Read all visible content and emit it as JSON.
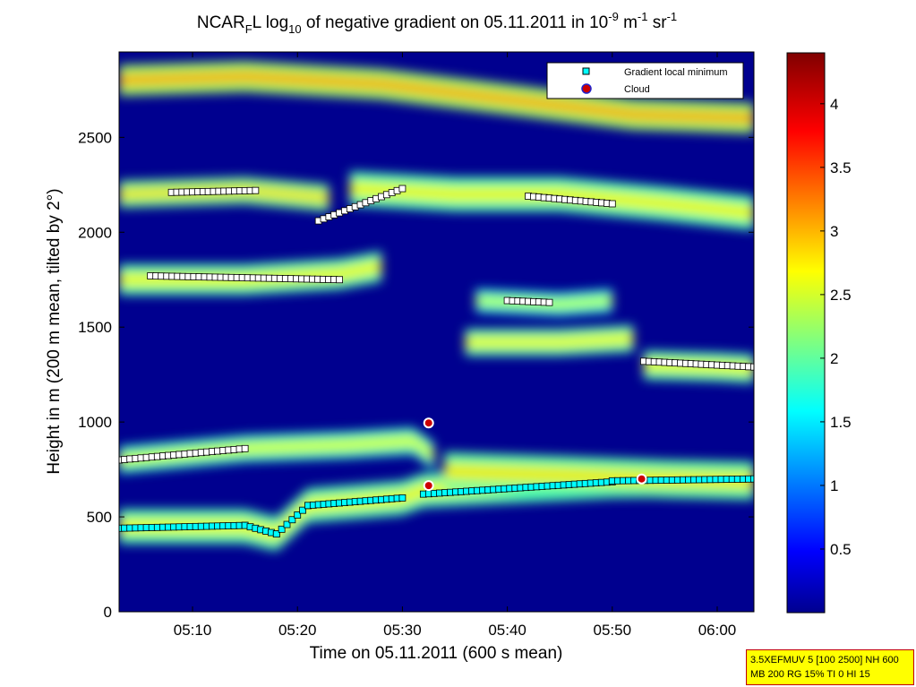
{
  "chart_data": {
    "type": "heatmap",
    "title": {
      "part1": "NCAR",
      "part1_sub": "F",
      "part2": "L log",
      "part2_sub": "10",
      "part3": " of negative gradient on 05.11.2011 in 10",
      "part3_sup": "-9",
      "part4": " m",
      "part4_sup": "-1",
      "part5": " sr",
      "part5_sup": "-1"
    },
    "xlabel": "Time on 05.11.2011 (600 s mean)",
    "ylabel": "Height in m (200 m mean, tilted by 2°)",
    "x_unit": "minutes after 05:00",
    "xlim": [
      3,
      63.5
    ],
    "ylim": [
      0,
      2950
    ],
    "x_ticks": [
      {
        "value": 10,
        "label": "05:10"
      },
      {
        "value": 20,
        "label": "05:20"
      },
      {
        "value": 30,
        "label": "05:30"
      },
      {
        "value": 40,
        "label": "05:40"
      },
      {
        "value": 50,
        "label": "05:50"
      },
      {
        "value": 60,
        "label": "06:00"
      }
    ],
    "y_ticks": [
      {
        "value": 0,
        "label": "0"
      },
      {
        "value": 500,
        "label": "500"
      },
      {
        "value": 1000,
        "label": "1000"
      },
      {
        "value": 1500,
        "label": "1500"
      },
      {
        "value": 2000,
        "label": "2000"
      },
      {
        "value": 2500,
        "label": "2500"
      }
    ],
    "colorbar": {
      "range": [
        0,
        4.4
      ],
      "ticks": [
        {
          "value": 0.5,
          "label": "0.5"
        },
        {
          "value": 1,
          "label": "1"
        },
        {
          "value": 1.5,
          "label": "1.5"
        },
        {
          "value": 2,
          "label": "2"
        },
        {
          "value": 2.5,
          "label": "2.5"
        },
        {
          "value": 3,
          "label": "3"
        },
        {
          "value": 3.5,
          "label": "3.5"
        },
        {
          "value": 4,
          "label": "4"
        }
      ]
    },
    "legend": {
      "position": "top-right",
      "entries": [
        {
          "label": "Gradient local minimum",
          "color": "#00ffff",
          "marker": "square"
        },
        {
          "label": "Cloud",
          "color": "#cc0000",
          "marker": "circle"
        }
      ]
    },
    "field_layers": [
      {
        "level": 2.0,
        "band": [
          [
            3,
            450
          ],
          [
            15,
            450
          ],
          [
            18,
            410
          ],
          [
            21,
            560
          ],
          [
            30,
            600
          ],
          [
            32,
            640
          ],
          [
            50,
            690
          ],
          [
            63.5,
            700
          ]
        ],
        "thickness": 180
      },
      {
        "level": 1.8,
        "band": [
          [
            3,
            800
          ],
          [
            15,
            860
          ],
          [
            25,
            880
          ],
          [
            31,
            900
          ],
          [
            33,
            820
          ]
        ],
        "thickness": 140
      },
      {
        "level": 2.1,
        "band": [
          [
            34,
            740
          ],
          [
            45,
            720
          ],
          [
            55,
            700
          ],
          [
            63.5,
            690
          ]
        ],
        "thickness": 200
      },
      {
        "level": 2.0,
        "band": [
          [
            3,
            1750
          ],
          [
            15,
            1750
          ],
          [
            24,
            1780
          ],
          [
            28,
            1820
          ]
        ],
        "thickness": 160
      },
      {
        "level": 2.0,
        "band": [
          [
            25,
            2230
          ],
          [
            35,
            2200
          ],
          [
            45,
            2200
          ],
          [
            55,
            2150
          ],
          [
            63.5,
            2100
          ]
        ],
        "thickness": 180
      },
      {
        "level": 2.2,
        "band": [
          [
            3,
            2200
          ],
          [
            15,
            2220
          ],
          [
            23,
            2180
          ]
        ],
        "thickness": 140
      },
      {
        "level": 2.6,
        "band": [
          [
            3,
            2800
          ],
          [
            15,
            2820
          ],
          [
            28,
            2780
          ],
          [
            40,
            2700
          ],
          [
            52,
            2620
          ],
          [
            63.5,
            2600
          ]
        ],
        "thickness": 160
      },
      {
        "level": 2.0,
        "band": [
          [
            36,
            1420
          ],
          [
            45,
            1420
          ],
          [
            52,
            1440
          ]
        ],
        "thickness": 140
      },
      {
        "level": 2.0,
        "band": [
          [
            53,
            1300
          ],
          [
            60,
            1290
          ],
          [
            63.5,
            1280
          ]
        ],
        "thickness": 150
      },
      {
        "level": 1.6,
        "band": [
          [
            37,
            1640
          ],
          [
            45,
            1620
          ],
          [
            50,
            1640
          ]
        ],
        "thickness": 120
      }
    ],
    "series": [
      {
        "name": "Gradient local minimum",
        "marker": "square",
        "color": "#00ffff",
        "segments": [
          {
            "x": [
              3,
              15
            ],
            "y": [
              440,
              455
            ]
          },
          {
            "x": [
              15,
              18
            ],
            "y": [
              455,
              410
            ]
          },
          {
            "x": [
              18,
              21
            ],
            "y": [
              410,
              560
            ]
          },
          {
            "x": [
              21,
              30
            ],
            "y": [
              560,
              600
            ]
          },
          {
            "x": [
              32,
              50
            ],
            "y": [
              620,
              685
            ]
          },
          {
            "x": [
              50,
              63.5
            ],
            "y": [
              690,
              700
            ]
          }
        ]
      },
      {
        "name": "Gradient local minimum (upper)",
        "marker": "square",
        "color": "#ffffff",
        "segments": [
          {
            "x": [
              3,
              15
            ],
            "y": [
              800,
              860
            ]
          },
          {
            "x": [
              6,
              24
            ],
            "y": [
              1770,
              1750
            ]
          },
          {
            "x": [
              8,
              16
            ],
            "y": [
              2210,
              2220
            ]
          },
          {
            "x": [
              22,
              30
            ],
            "y": [
              2060,
              2230
            ]
          },
          {
            "x": [
              42,
              50
            ],
            "y": [
              2190,
              2150
            ]
          },
          {
            "x": [
              40,
              44
            ],
            "y": [
              1640,
              1630
            ]
          },
          {
            "x": [
              53,
              63.5
            ],
            "y": [
              1320,
              1290
            ]
          }
        ]
      },
      {
        "name": "Cloud",
        "marker": "circle",
        "color": "#cc0000",
        "points": [
          {
            "x": 32.5,
            "y": 995
          },
          {
            "x": 32.5,
            "y": 665
          },
          {
            "x": 52.8,
            "y": 700
          }
        ]
      }
    ]
  },
  "info_box": {
    "line1": "3.5XEFMUV 5 [100 2500] NH 600",
    "line2": "MB 200 RG 15% TI 0 HI 15"
  }
}
